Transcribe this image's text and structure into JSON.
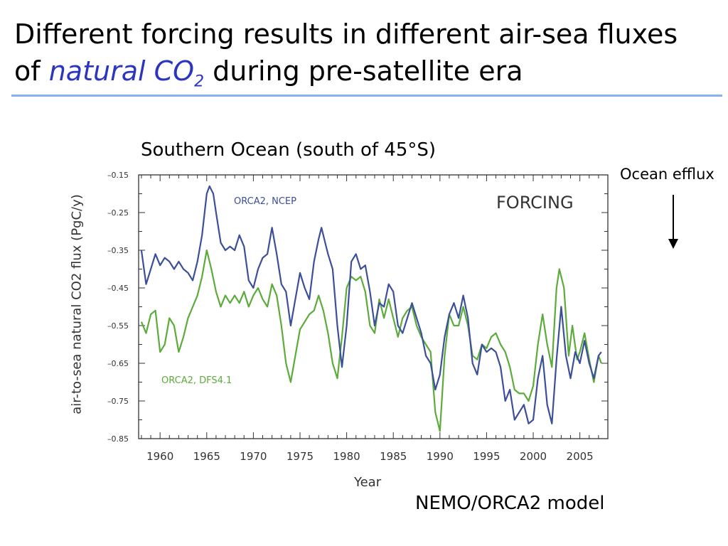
{
  "slide": {
    "title_line1": "Different forcing results in different air-sea fluxes",
    "title_prefix": "of ",
    "title_em": "natural CO",
    "title_sub": "2",
    "title_suffix": " during pre-satellite era",
    "subtitle": "Southern Ocean (south of 45°S)",
    "efflux_label": "Ocean efflux",
    "model_label": "NEMO/ORCA2 model",
    "accent_color": "#2b35c0",
    "rule_color": "#8aaef2"
  },
  "chart_data": {
    "type": "line",
    "xlabel": "Year",
    "ylabel": "air-to-sea natural CO2 flux (PgC/y)",
    "annotation": "FORCING",
    "xlim": [
      1957.7,
      2008.0
    ],
    "ylim": [
      -0.85,
      -0.15
    ],
    "x_ticks": [
      1960,
      1965,
      1970,
      1975,
      1980,
      1985,
      1990,
      1995,
      2000,
      2005
    ],
    "y_ticks": [
      -0.15,
      -0.25,
      -0.35,
      -0.45,
      -0.55,
      -0.65,
      -0.75,
      -0.85
    ],
    "y_tick_labels": [
      "–0.15",
      "–0.25",
      "–0.35",
      "–0.45",
      "–0.55",
      "–0.65",
      "–0.75",
      "–0.85"
    ],
    "grid": false,
    "series": [
      {
        "name": "ORCA2, NCEP",
        "color": "#3b4f9a",
        "points": [
          [
            1958.0,
            -0.35
          ],
          [
            1958.5,
            -0.44
          ],
          [
            1959.0,
            -0.4
          ],
          [
            1959.5,
            -0.36
          ],
          [
            1960.0,
            -0.39
          ],
          [
            1960.5,
            -0.37
          ],
          [
            1961.0,
            -0.38
          ],
          [
            1961.5,
            -0.4
          ],
          [
            1962.0,
            -0.38
          ],
          [
            1962.5,
            -0.4
          ],
          [
            1963.0,
            -0.41
          ],
          [
            1963.5,
            -0.43
          ],
          [
            1964.0,
            -0.38
          ],
          [
            1964.5,
            -0.31
          ],
          [
            1965.0,
            -0.2
          ],
          [
            1965.3,
            -0.18
          ],
          [
            1965.7,
            -0.2
          ],
          [
            1966.0,
            -0.25
          ],
          [
            1966.5,
            -0.33
          ],
          [
            1967.0,
            -0.35
          ],
          [
            1967.5,
            -0.34
          ],
          [
            1968.0,
            -0.35
          ],
          [
            1968.5,
            -0.31
          ],
          [
            1969.0,
            -0.34
          ],
          [
            1969.5,
            -0.43
          ],
          [
            1970.0,
            -0.45
          ],
          [
            1970.5,
            -0.4
          ],
          [
            1971.0,
            -0.37
          ],
          [
            1971.5,
            -0.36
          ],
          [
            1972.0,
            -0.29
          ],
          [
            1972.5,
            -0.36
          ],
          [
            1973.0,
            -0.44
          ],
          [
            1973.5,
            -0.46
          ],
          [
            1974.0,
            -0.55
          ],
          [
            1974.5,
            -0.48
          ],
          [
            1975.0,
            -0.41
          ],
          [
            1975.5,
            -0.45
          ],
          [
            1976.0,
            -0.48
          ],
          [
            1976.5,
            -0.38
          ],
          [
            1977.0,
            -0.32
          ],
          [
            1977.3,
            -0.29
          ],
          [
            1977.8,
            -0.34
          ],
          [
            1978.0,
            -0.36
          ],
          [
            1978.5,
            -0.4
          ],
          [
            1979.0,
            -0.55
          ],
          [
            1979.5,
            -0.66
          ],
          [
            1980.0,
            -0.55
          ],
          [
            1980.5,
            -0.38
          ],
          [
            1981.0,
            -0.36
          ],
          [
            1981.5,
            -0.4
          ],
          [
            1982.0,
            -0.39
          ],
          [
            1982.5,
            -0.46
          ],
          [
            1983.0,
            -0.55
          ],
          [
            1983.5,
            -0.49
          ],
          [
            1984.0,
            -0.5
          ],
          [
            1984.5,
            -0.44
          ],
          [
            1985.0,
            -0.46
          ],
          [
            1985.5,
            -0.55
          ],
          [
            1986.0,
            -0.57
          ],
          [
            1986.5,
            -0.53
          ],
          [
            1987.0,
            -0.49
          ],
          [
            1987.5,
            -0.53
          ],
          [
            1988.0,
            -0.57
          ],
          [
            1988.5,
            -0.63
          ],
          [
            1989.0,
            -0.65
          ],
          [
            1989.5,
            -0.72
          ],
          [
            1990.0,
            -0.68
          ],
          [
            1990.5,
            -0.58
          ],
          [
            1991.0,
            -0.52
          ],
          [
            1991.5,
            -0.49
          ],
          [
            1992.0,
            -0.53
          ],
          [
            1992.5,
            -0.47
          ],
          [
            1993.0,
            -0.53
          ],
          [
            1993.5,
            -0.65
          ],
          [
            1994.0,
            -0.68
          ],
          [
            1994.5,
            -0.6
          ],
          [
            1995.0,
            -0.62
          ],
          [
            1995.5,
            -0.61
          ],
          [
            1996.0,
            -0.62
          ],
          [
            1996.5,
            -0.66
          ],
          [
            1997.0,
            -0.75
          ],
          [
            1997.5,
            -0.72
          ],
          [
            1998.0,
            -0.8
          ],
          [
            1998.5,
            -0.78
          ],
          [
            1999.0,
            -0.76
          ],
          [
            1999.5,
            -0.81
          ],
          [
            2000.0,
            -0.8
          ],
          [
            2000.5,
            -0.69
          ],
          [
            2001.0,
            -0.63
          ],
          [
            2001.5,
            -0.76
          ],
          [
            2002.0,
            -0.81
          ],
          [
            2002.5,
            -0.64
          ],
          [
            2003.0,
            -0.5
          ],
          [
            2003.5,
            -0.63
          ],
          [
            2004.0,
            -0.69
          ],
          [
            2004.5,
            -0.62
          ],
          [
            2005.0,
            -0.65
          ],
          [
            2005.5,
            -0.59
          ],
          [
            2006.0,
            -0.65
          ],
          [
            2006.5,
            -0.69
          ],
          [
            2007.0,
            -0.63
          ],
          [
            2007.3,
            -0.62
          ]
        ]
      },
      {
        "name": "ORCA2, DFS4.1",
        "color": "#5cab3b",
        "points": [
          [
            1958.0,
            -0.54
          ],
          [
            1958.5,
            -0.57
          ],
          [
            1959.0,
            -0.52
          ],
          [
            1959.5,
            -0.51
          ],
          [
            1960.0,
            -0.62
          ],
          [
            1960.5,
            -0.6
          ],
          [
            1961.0,
            -0.53
          ],
          [
            1961.5,
            -0.55
          ],
          [
            1962.0,
            -0.62
          ],
          [
            1962.5,
            -0.58
          ],
          [
            1963.0,
            -0.53
          ],
          [
            1963.5,
            -0.5
          ],
          [
            1964.0,
            -0.47
          ],
          [
            1964.5,
            -0.42
          ],
          [
            1965.0,
            -0.35
          ],
          [
            1965.5,
            -0.4
          ],
          [
            1966.0,
            -0.46
          ],
          [
            1966.5,
            -0.5
          ],
          [
            1967.0,
            -0.47
          ],
          [
            1967.5,
            -0.49
          ],
          [
            1968.0,
            -0.47
          ],
          [
            1968.5,
            -0.49
          ],
          [
            1969.0,
            -0.46
          ],
          [
            1969.5,
            -0.5
          ],
          [
            1970.0,
            -0.47
          ],
          [
            1970.5,
            -0.45
          ],
          [
            1971.0,
            -0.48
          ],
          [
            1971.5,
            -0.5
          ],
          [
            1972.0,
            -0.44
          ],
          [
            1972.5,
            -0.47
          ],
          [
            1973.0,
            -0.55
          ],
          [
            1973.5,
            -0.65
          ],
          [
            1974.0,
            -0.7
          ],
          [
            1974.5,
            -0.63
          ],
          [
            1975.0,
            -0.56
          ],
          [
            1975.5,
            -0.54
          ],
          [
            1976.0,
            -0.52
          ],
          [
            1976.5,
            -0.51
          ],
          [
            1977.0,
            -0.47
          ],
          [
            1977.5,
            -0.51
          ],
          [
            1978.0,
            -0.57
          ],
          [
            1978.5,
            -0.65
          ],
          [
            1979.0,
            -0.69
          ],
          [
            1979.5,
            -0.58
          ],
          [
            1980.0,
            -0.45
          ],
          [
            1980.5,
            -0.42
          ],
          [
            1981.0,
            -0.43
          ],
          [
            1981.5,
            -0.42
          ],
          [
            1982.0,
            -0.46
          ],
          [
            1982.5,
            -0.55
          ],
          [
            1983.0,
            -0.57
          ],
          [
            1983.5,
            -0.48
          ],
          [
            1984.0,
            -0.53
          ],
          [
            1984.5,
            -0.48
          ],
          [
            1985.0,
            -0.53
          ],
          [
            1985.5,
            -0.58
          ],
          [
            1986.0,
            -0.53
          ],
          [
            1986.5,
            -0.51
          ],
          [
            1987.0,
            -0.5
          ],
          [
            1987.5,
            -0.55
          ],
          [
            1988.0,
            -0.58
          ],
          [
            1988.5,
            -0.6
          ],
          [
            1989.0,
            -0.62
          ],
          [
            1989.5,
            -0.78
          ],
          [
            1990.0,
            -0.83
          ],
          [
            1990.5,
            -0.63
          ],
          [
            1991.0,
            -0.52
          ],
          [
            1991.5,
            -0.55
          ],
          [
            1992.0,
            -0.55
          ],
          [
            1992.5,
            -0.5
          ],
          [
            1993.0,
            -0.55
          ],
          [
            1993.5,
            -0.63
          ],
          [
            1994.0,
            -0.64
          ],
          [
            1994.5,
            -0.6
          ],
          [
            1995.0,
            -0.61
          ],
          [
            1995.5,
            -0.58
          ],
          [
            1996.0,
            -0.57
          ],
          [
            1996.5,
            -0.6
          ],
          [
            1997.0,
            -0.62
          ],
          [
            1997.5,
            -0.66
          ],
          [
            1998.0,
            -0.72
          ],
          [
            1998.5,
            -0.73
          ],
          [
            1999.0,
            -0.73
          ],
          [
            1999.5,
            -0.75
          ],
          [
            2000.0,
            -0.71
          ],
          [
            2000.5,
            -0.6
          ],
          [
            2001.0,
            -0.52
          ],
          [
            2001.5,
            -0.6
          ],
          [
            2002.0,
            -0.66
          ],
          [
            2002.5,
            -0.45
          ],
          [
            2002.8,
            -0.4
          ],
          [
            2003.3,
            -0.45
          ],
          [
            2003.8,
            -0.63
          ],
          [
            2004.2,
            -0.55
          ],
          [
            2004.7,
            -0.64
          ],
          [
            2005.0,
            -0.62
          ],
          [
            2005.5,
            -0.57
          ],
          [
            2006.0,
            -0.64
          ],
          [
            2006.5,
            -0.7
          ],
          [
            2007.0,
            -0.63
          ],
          [
            2007.3,
            -0.65
          ]
        ]
      }
    ]
  }
}
